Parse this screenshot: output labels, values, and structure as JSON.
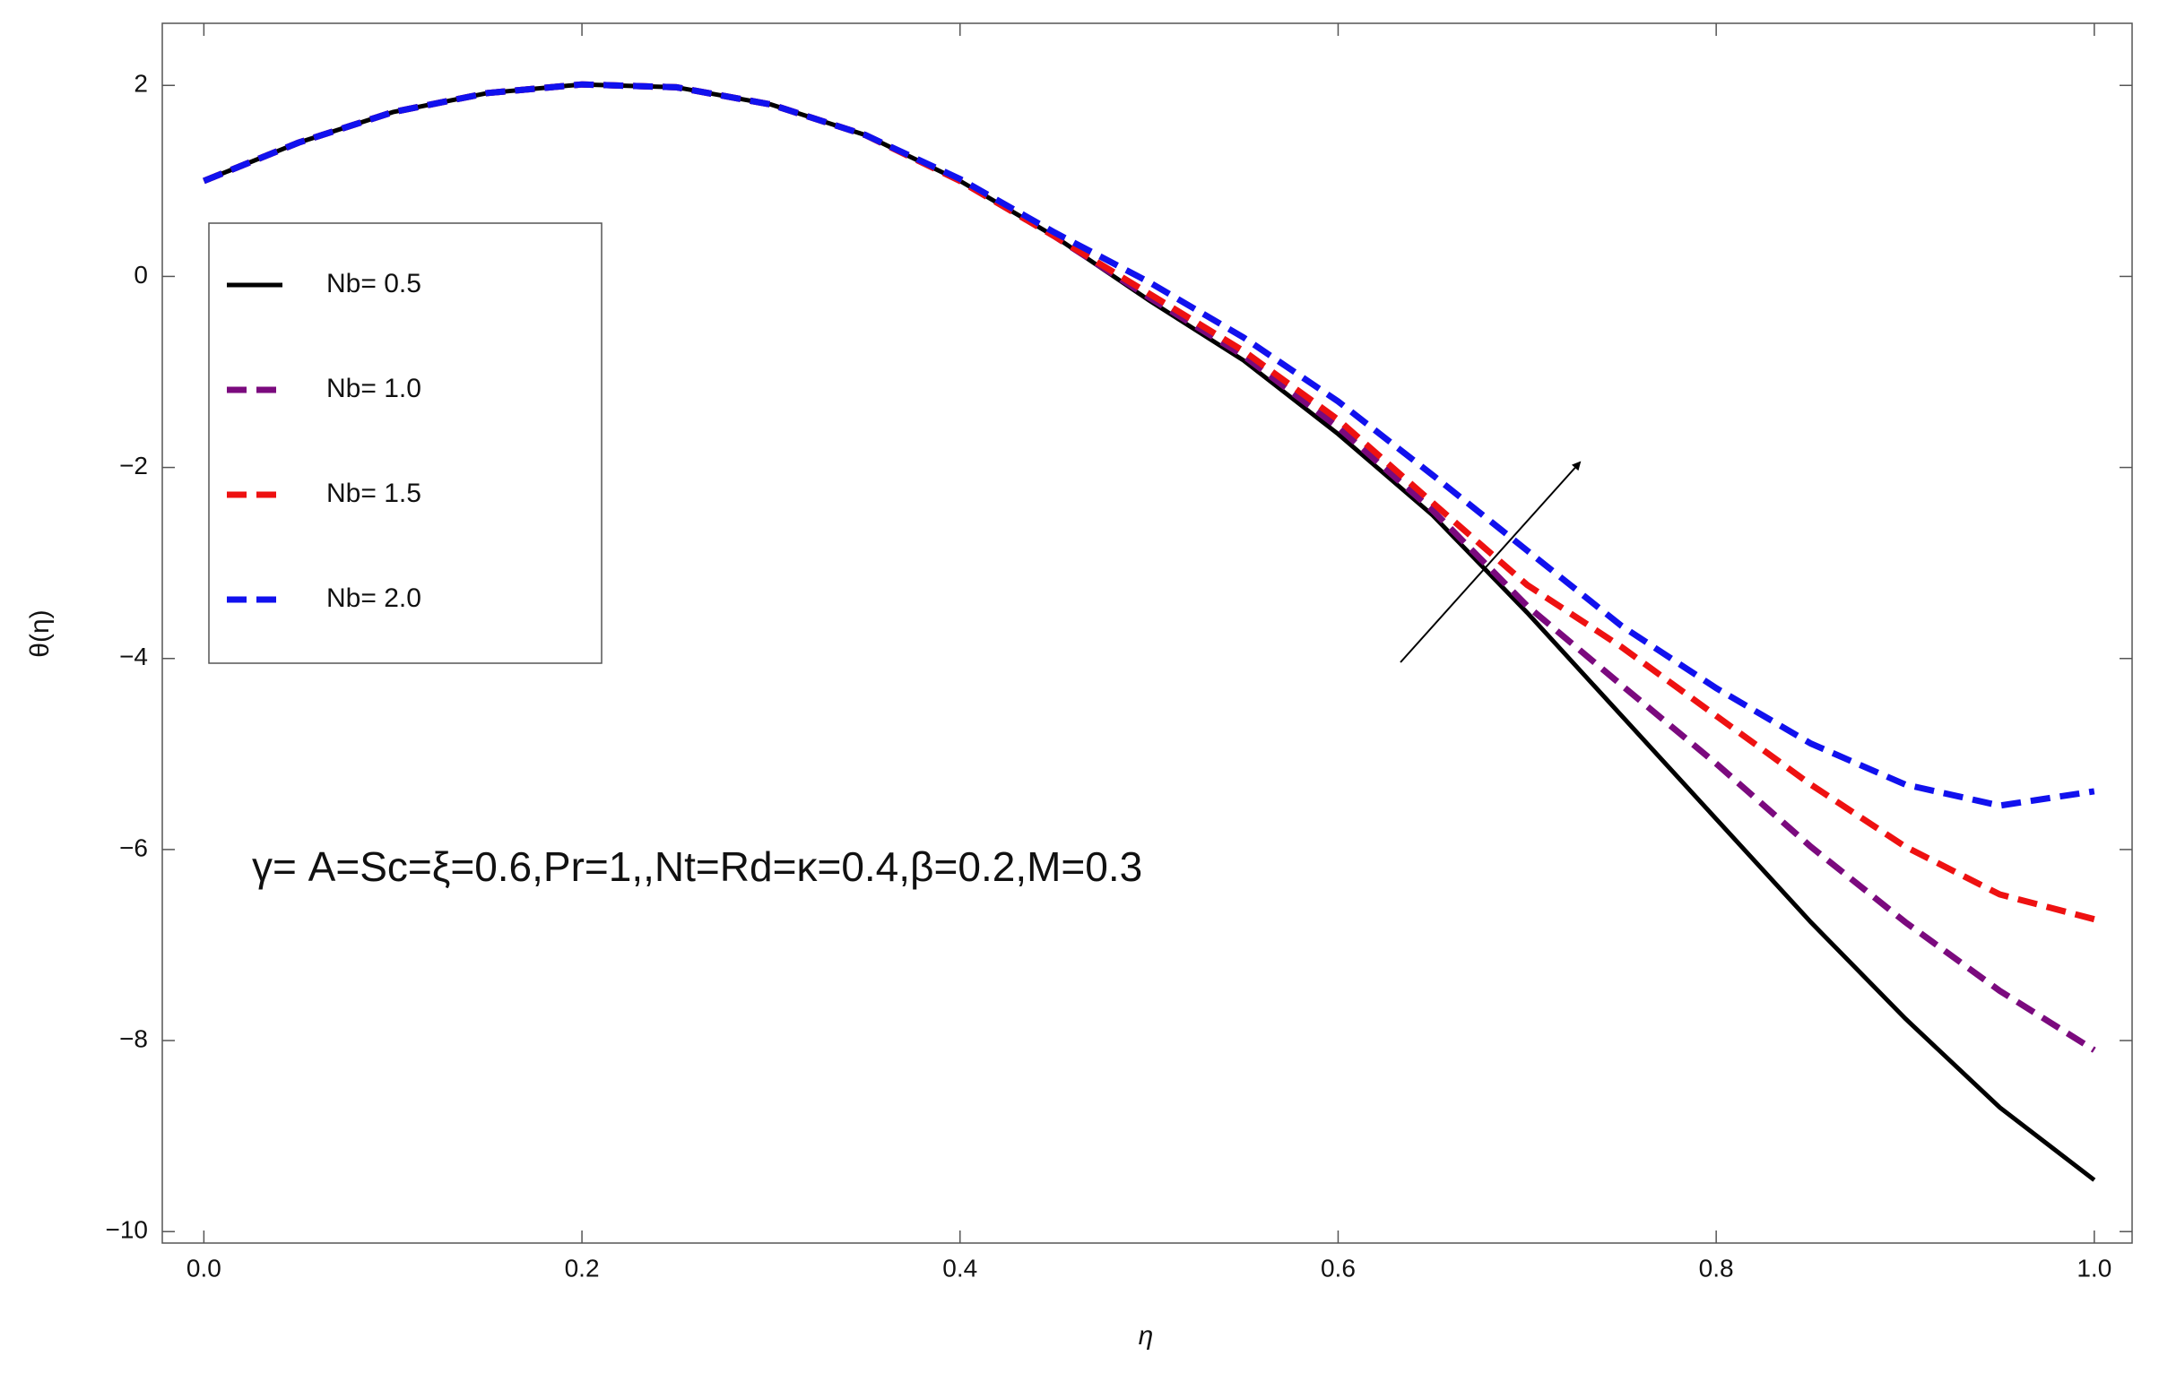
{
  "chart_data": {
    "type": "line",
    "x_label": "η",
    "y_label": "θ(η)",
    "annotation": "γ= A=Sc=ξ=0.6,Pr=1,,Nt=Rd=κ=0.4,β=0.2,M=0.3",
    "x": [
      0,
      0.05,
      0.1,
      0.15,
      0.2,
      0.25,
      0.3,
      0.35,
      0.4,
      0.45,
      0.5,
      0.55,
      0.6,
      0.65,
      0.7,
      0.75,
      0.8,
      0.85,
      0.9,
      0.95,
      1.0
    ],
    "series": [
      {
        "name": "Nb= 0.5",
        "color": "#000000",
        "dash": "solid",
        "values": [
          1.0,
          1.4,
          1.72,
          1.92,
          2.01,
          1.98,
          1.8,
          1.48,
          1.0,
          0.42,
          -0.25,
          -0.88,
          -1.65,
          -2.5,
          -3.52,
          -4.6,
          -5.68,
          -6.76,
          -7.77,
          -8.7,
          -9.46
        ]
      },
      {
        "name": "Nb= 1.0",
        "color": "#7b0a7e",
        "dash": "dashed",
        "values": [
          1.0,
          1.4,
          1.72,
          1.92,
          2.01,
          1.98,
          1.8,
          1.48,
          1.0,
          0.42,
          -0.22,
          -0.83,
          -1.58,
          -2.45,
          -3.45,
          -4.28,
          -5.1,
          -5.97,
          -6.76,
          -7.48,
          -8.1
        ]
      },
      {
        "name": "Nb= 1.5",
        "color": "#ee1111",
        "dash": "dashed",
        "values": [
          1.0,
          1.4,
          1.72,
          1.92,
          2.01,
          1.98,
          1.8,
          1.48,
          1.0,
          0.42,
          -0.18,
          -0.78,
          -1.5,
          -2.37,
          -3.23,
          -3.88,
          -4.6,
          -5.32,
          -5.97,
          -6.47,
          -6.73
        ]
      },
      {
        "name": "Nb= 2.0",
        "color": "#1111ee",
        "dash": "dashed",
        "values": [
          1.0,
          1.4,
          1.72,
          1.92,
          2.01,
          1.98,
          1.8,
          1.48,
          1.02,
          0.46,
          -0.06,
          -0.64,
          -1.31,
          -2.08,
          -2.87,
          -3.66,
          -4.31,
          -4.89,
          -5.32,
          -5.54,
          -5.39
        ]
      }
    ],
    "xlim": [
      -0.022,
      1.02
    ],
    "ylim": [
      -10.12,
      2.65
    ],
    "xticks": [
      {
        "value": 0,
        "label": "0.0"
      },
      0.2,
      0.4,
      0.6,
      0.8,
      {
        "value": 1.0,
        "label": "1.0"
      }
    ],
    "yticks": [
      2,
      0,
      {
        "value": -2,
        "label": "−2"
      },
      {
        "value": -4,
        "label": "−4"
      },
      {
        "value": -6,
        "label": "−6"
      },
      {
        "value": -8,
        "label": "−8"
      },
      {
        "value": -10,
        "label": "−10"
      }
    ],
    "grid": false,
    "legend": "upper-left"
  }
}
